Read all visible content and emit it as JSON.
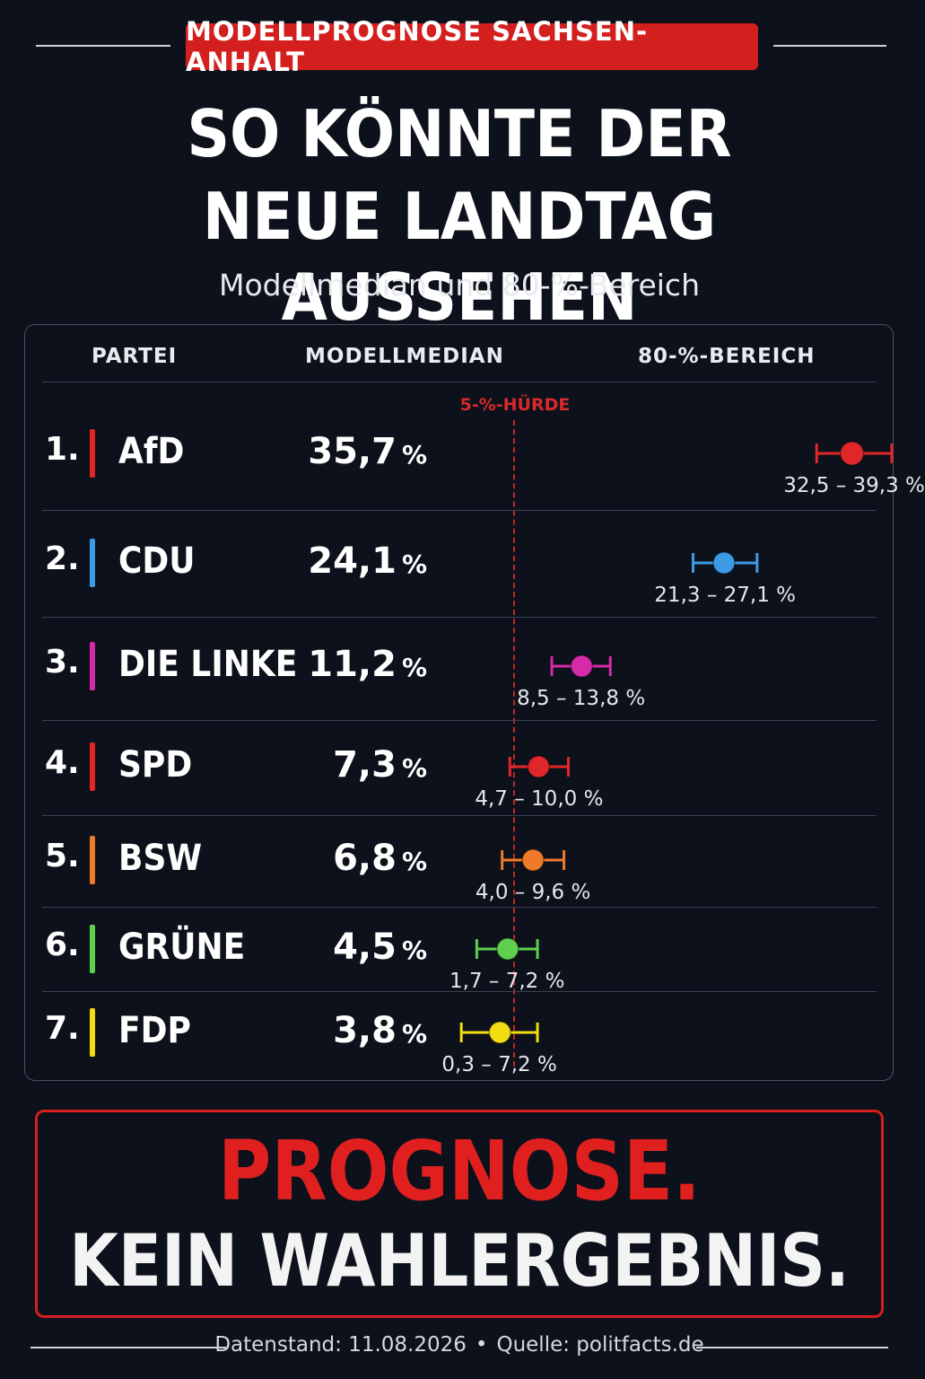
{
  "header": {
    "kicker": "MODELLPROGNOSE SACHSEN-ANHALT",
    "title_line1": "SO KÖNNTE DER",
    "title_line2": "NEUE LANDTAG AUSSEHEN",
    "subtitle": "Modellmedian und 80-%-Bereich"
  },
  "table": {
    "col_party": "PARTEI",
    "col_median": "MODELLMEDIAN",
    "col_range": "80-%-BEREICH",
    "threshold_label": "5-%-HÜRDE",
    "unit": "%"
  },
  "chart_data": {
    "type": "errorbar",
    "threshold": 5,
    "threshold_label": "5-%-HÜRDE",
    "rows": [
      {
        "rank": "1.",
        "party": "AfD",
        "median": 35.7,
        "median_label": "35,7",
        "low": 32.5,
        "high": 39.3,
        "range_label": "32,5 – 39,3 %",
        "color": "#e0282a"
      },
      {
        "rank": "2.",
        "party": "CDU",
        "median": 24.1,
        "median_label": "24,1",
        "low": 21.3,
        "high": 27.1,
        "range_label": "21,3 – 27,1 %",
        "color": "#3d9be6"
      },
      {
        "rank": "3.",
        "party": "DIE LINKE",
        "median": 11.2,
        "median_label": "11,2",
        "low": 8.5,
        "high": 13.8,
        "range_label": "8,5 – 13,8 %",
        "color": "#d62ba8"
      },
      {
        "rank": "4.",
        "party": "SPD",
        "median": 7.3,
        "median_label": "7,3",
        "low": 4.7,
        "high": 10.0,
        "range_label": "4,7 – 10,0 %",
        "color": "#e0282a"
      },
      {
        "rank": "5.",
        "party": "BSW",
        "median": 6.8,
        "median_label": "6,8",
        "low": 4.0,
        "high": 9.6,
        "range_label": "4,0 – 9,6 %",
        "color": "#ee7a2a"
      },
      {
        "rank": "6.",
        "party": "GRÜNE",
        "median": 4.5,
        "median_label": "4,5",
        "low": 1.7,
        "high": 7.2,
        "range_label": "1,7 – 7,2 %",
        "color": "#5fcf4f"
      },
      {
        "rank": "7.",
        "party": "FDP",
        "median": 3.8,
        "median_label": "3,8",
        "low": 0.3,
        "high": 7.2,
        "range_label": "0,3 – 7,2 %",
        "color": "#f2dc12"
      }
    ]
  },
  "disclaimer": {
    "line1": "PROGNOSE.",
    "line2": "KEIN WAHLERGEBNIS."
  },
  "footer": {
    "date": "Datenstand: 11.08.2026",
    "source": "Quelle: politfacts.de",
    "separator": "•"
  }
}
